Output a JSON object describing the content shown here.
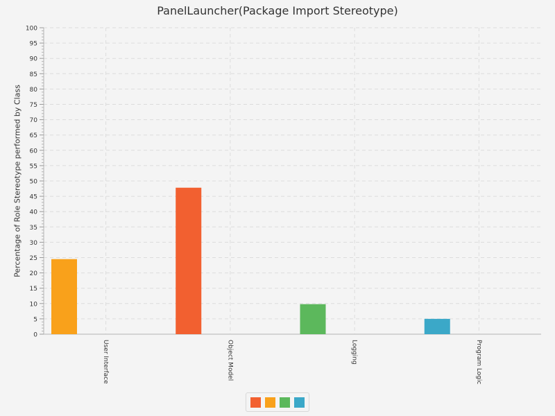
{
  "chart_data": {
    "type": "bar",
    "title": "PanelLauncher(Package Import Stereotype)",
    "xlabel": "",
    "ylabel": "Percentage of Role Stereotype performed by Class",
    "categories": [
      "User Interface",
      "Object Model",
      "Logging",
      "Program Logic"
    ],
    "values": [
      24.5,
      47.8,
      9.8,
      5.0
    ],
    "bar_colors": [
      "#f9a11b",
      "#f26030",
      "#5cb85c",
      "#3ba8c8"
    ],
    "ylim": [
      0,
      100
    ],
    "yticks": [
      0,
      5,
      10,
      15,
      20,
      25,
      30,
      35,
      40,
      45,
      50,
      55,
      60,
      65,
      70,
      75,
      80,
      85,
      90,
      95,
      100
    ],
    "grid": true,
    "legend": {
      "placement": "bottom-center",
      "swatch_colors": [
        "#f26030",
        "#f9a11b",
        "#5cb85c",
        "#3ba8c8"
      ]
    }
  }
}
